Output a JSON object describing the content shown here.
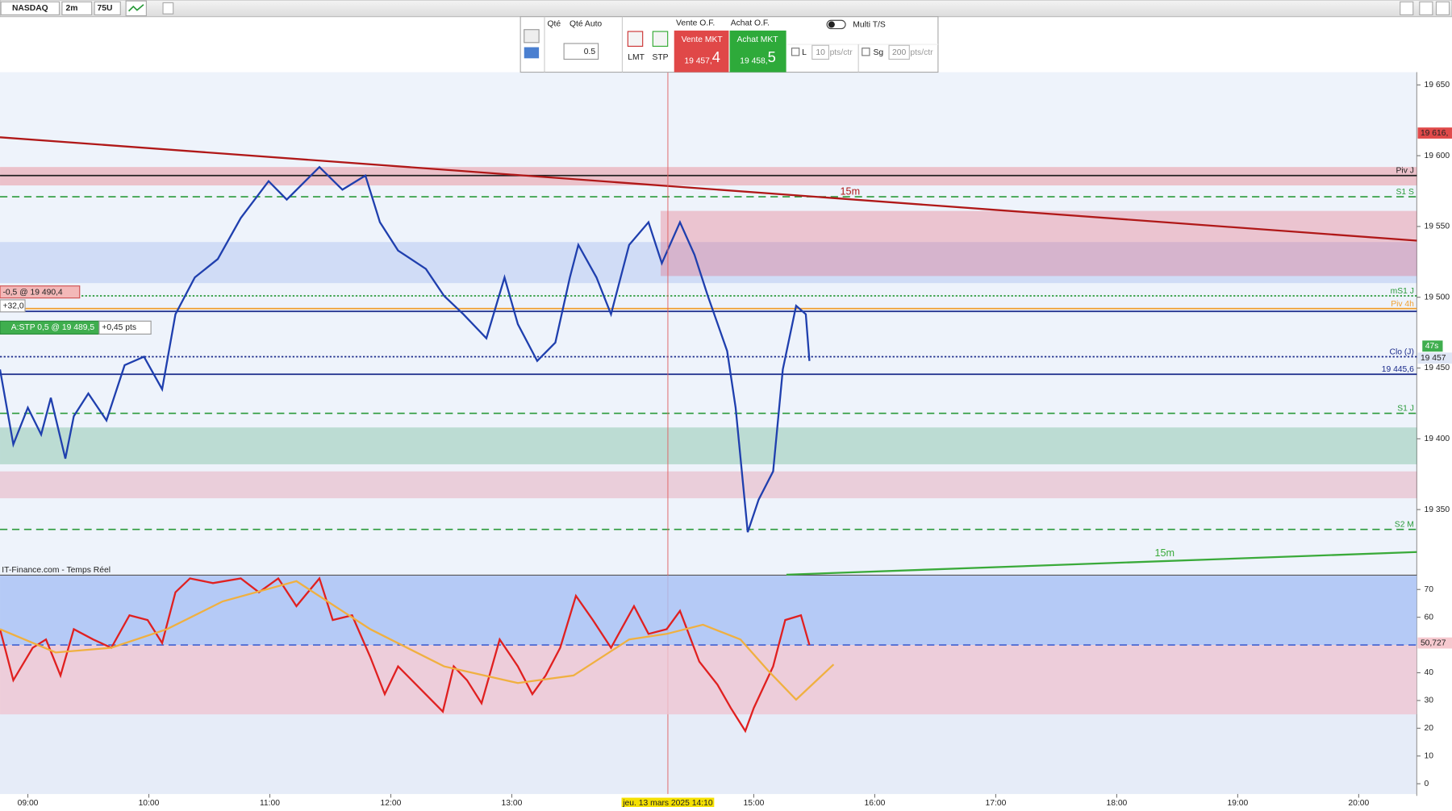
{
  "toolbar": {
    "symbol": "NASDAQ",
    "timeframe": "2m",
    "units": "75U"
  },
  "order_panel": {
    "qty_label": "Qté",
    "qty_mode": "Qté Auto",
    "qty": "0.5",
    "limit": "LMT",
    "stop": "STP",
    "sell_of": "Vente O.F.",
    "buy_of": "Achat O.F.",
    "sell_mkt": "Vente MKT",
    "buy_mkt": "Achat MKT",
    "sell_price": "19 457,",
    "sell_price_last": "4",
    "buy_price": "19 458,",
    "buy_price_last": "5",
    "multi_ts": "Multi T/S",
    "l_label": "L",
    "l_value": "10",
    "l_unit": "pts/ctr",
    "sg_label": "Sg",
    "sg_value": "200",
    "sg_unit": "pts/ctr"
  },
  "orders": {
    "order_tag": "-0,5 @ 19 490,4",
    "order_pnl": "+32,0",
    "stop_tag": "A:STP 0,5 @ 19 489,5",
    "stop_dist": "+0,45 pts"
  },
  "chart_data": [
    {
      "type": "line",
      "source": "IT-Finance.com - Temps Réel",
      "x": [
        8.77,
        8.88,
        9.0,
        9.11,
        9.19,
        9.31,
        9.38,
        9.5,
        9.65,
        9.8,
        9.96,
        10.11,
        10.22,
        10.38,
        10.57,
        10.76,
        10.99,
        11.14,
        11.41,
        11.6,
        11.79,
        11.91,
        12.06,
        12.29,
        12.44,
        12.6,
        12.79,
        12.94,
        13.05,
        13.21,
        13.36,
        13.48,
        13.55,
        13.7,
        13.82,
        13.97,
        14.13,
        14.24,
        14.39,
        14.51,
        14.62,
        14.78,
        14.85,
        14.95,
        15.04,
        15.16,
        15.24,
        15.35,
        15.43,
        15.46
      ],
      "series": [
        {
          "color": "#1f3fae",
          "values": [
            19449,
            19396,
            19422,
            19403,
            19429,
            19386,
            19416,
            19432,
            19413,
            19452,
            19458,
            19435,
            19488,
            19514,
            19527,
            19556,
            19582,
            19569,
            19592,
            19576,
            19586,
            19553,
            19533,
            19520,
            19501,
            19488,
            19471,
            19514,
            19481,
            19455,
            19468,
            19514,
            19537,
            19514,
            19488,
            19537,
            19553,
            19524,
            19553,
            19530,
            19501,
            19462,
            19422,
            19334,
            19357,
            19377,
            19449,
            19494,
            19488,
            19455
          ]
        }
      ],
      "xlim": [
        8.77,
        20.48
      ],
      "xticks": [
        {
          "value": 9,
          "label": "09:00"
        },
        {
          "value": 10,
          "label": "10:00"
        },
        {
          "value": 11,
          "label": "11:00"
        },
        {
          "value": 12,
          "label": "12:00"
        },
        {
          "value": 13,
          "label": "13:00"
        },
        {
          "value": 15,
          "label": "15:00"
        },
        {
          "value": 16,
          "label": "16:00"
        },
        {
          "value": 17,
          "label": "17:00"
        },
        {
          "value": 18,
          "label": "18:00"
        },
        {
          "value": 19,
          "label": "19:00"
        },
        {
          "value": 20,
          "label": "20:00"
        }
      ],
      "ylim": [
        19304,
        19659
      ],
      "yticks": [
        {
          "value": 19350,
          "label": "19 350"
        },
        {
          "value": 19400,
          "label": "19 400"
        },
        {
          "value": 19450,
          "label": "19 450"
        },
        {
          "value": 19500,
          "label": "19 500"
        },
        {
          "value": 19550,
          "label": "19 550"
        },
        {
          "value": 19600,
          "label": "19 600"
        },
        {
          "value": 19650,
          "label": "19 650"
        }
      ],
      "zones": [
        {
          "from": 19510,
          "to": 19539,
          "color": "rgba(120,150,230,0.25)"
        },
        {
          "from": 19579,
          "to": 19592,
          "color": "rgba(230,80,90,0.3)"
        },
        {
          "from": 19515,
          "to": 19561,
          "start": 14.23,
          "color": "rgba(230,90,110,0.3)"
        },
        {
          "from": 19382,
          "to": 19408,
          "color": "rgba(40,150,90,0.25)"
        },
        {
          "from": 19358,
          "to": 19377,
          "color": "rgba(220,60,90,0.2)"
        }
      ],
      "levels": [
        {
          "name": "Piv J",
          "value": 19586,
          "color": "#222222",
          "style": "solid"
        },
        {
          "name": "S1 S",
          "value": 19571,
          "color": "#2a9a3a",
          "style": "dashed"
        },
        {
          "name": "mS1 J",
          "value": 19501,
          "color": "#2a9a3a",
          "style": "dotted"
        },
        {
          "name": "Piv 4h",
          "value": 19492,
          "color": "#f0a030",
          "style": "solid"
        },
        {
          "value": 19490,
          "color": "#1a2a8a",
          "style": "solid"
        },
        {
          "name": "Clo (J)",
          "value": 19458,
          "color": "#1a2a8a",
          "style": "dotted"
        },
        {
          "name": "19 445,6",
          "value": 19445.6,
          "color": "#1a2a8a",
          "style": "solid"
        },
        {
          "name": "S1 J",
          "value": 19418,
          "color": "#2a9a3a",
          "style": "dashed"
        },
        {
          "name": "S2 M",
          "value": 19336,
          "color": "#2a9a3a",
          "style": "dashed"
        }
      ],
      "trendlines": [
        {
          "name": "15m",
          "x": [
            8.77,
            20.48
          ],
          "values": [
            19613,
            19540
          ],
          "color": "#b01818"
        },
        {
          "name": "15m",
          "x": [
            15.27,
            20.48
          ],
          "values": [
            19304,
            19320
          ],
          "color": "#3aaa3a"
        }
      ],
      "cursor": {
        "x": 14.29,
        "label": "jeu. 13 mars 2025 14:10"
      },
      "price_tags": [
        {
          "value": 19616,
          "label": "19 616,",
          "color": "#e04a4a"
        },
        {
          "value": 19457,
          "label": "19 457",
          "color": "#dfe6f5"
        }
      ],
      "timer": "47s"
    },
    {
      "type": "line",
      "series": [
        {
          "color": "#e02020",
          "x": [
            8.77,
            8.88,
            9.04,
            9.15,
            9.27,
            9.38,
            9.54,
            9.69,
            9.84,
            9.99,
            10.11,
            10.22,
            10.34,
            10.53,
            10.76,
            10.91,
            11.07,
            11.22,
            11.41,
            11.52,
            11.68,
            11.83,
            11.95,
            12.06,
            12.21,
            12.43,
            12.52,
            12.63,
            12.75,
            12.9,
            13.05,
            13.17,
            13.28,
            13.4,
            13.53,
            13.67,
            13.82,
            14.01,
            14.13,
            14.28,
            14.39,
            14.55,
            14.7,
            14.81,
            14.93,
            15.0,
            15.16,
            15.26,
            15.39,
            15.46
          ],
          "values": [
            55.7,
            37.3,
            49,
            52,
            39,
            55.7,
            52,
            49,
            60.7,
            59,
            50.7,
            69,
            74,
            72.3,
            74,
            69,
            74,
            64,
            74,
            59,
            60.7,
            45.7,
            32.3,
            42.3,
            35.7,
            26,
            42.3,
            37.3,
            29,
            52,
            42.3,
            32.3,
            39,
            49,
            67.7,
            59,
            49,
            64,
            54,
            55.7,
            62.3,
            44,
            35.7,
            27.3,
            19,
            27.3,
            42.3,
            59,
            60.7,
            50
          ]
        },
        {
          "color": "#f0b040",
          "x": [
            8.77,
            9.23,
            9.69,
            10.15,
            10.61,
            11.22,
            11.83,
            12.44,
            13.05,
            13.51,
            13.97,
            14.28,
            14.58,
            14.89,
            15.12,
            15.35,
            15.66
          ],
          "values": [
            55.7,
            47.3,
            49,
            55.7,
            65.7,
            73,
            55.7,
            42.3,
            36.3,
            39,
            52,
            54,
            57.3,
            52,
            40.7,
            30.3,
            43
          ]
        }
      ],
      "xlim": [
        8.77,
        20.48
      ],
      "ylim": [
        -3.7,
        75
      ],
      "yticks": [
        0,
        10,
        20,
        30,
        40,
        60,
        70
      ],
      "bands": [
        {
          "from": 50,
          "to": 75,
          "color": "#a9c2f5"
        },
        {
          "from": 25,
          "to": 50,
          "color": "#efc6d2"
        }
      ],
      "levels": [
        {
          "value": 50,
          "color": "#4060d0",
          "style": "dashed"
        }
      ],
      "price_tags": [
        {
          "value": 50.727,
          "label": "50,727",
          "color": "#f6c9cf"
        }
      ]
    }
  ]
}
